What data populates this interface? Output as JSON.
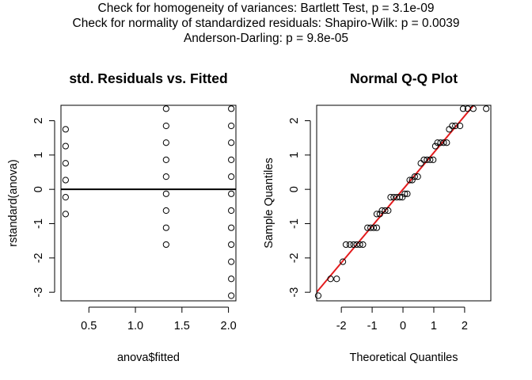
{
  "header": {
    "line1": "Check for homogeneity of variances: Bartlett Test, p =  3.1e-09",
    "line2": "Check for normality of standardized residuals: Shapiro-Wilk: p =  0.0039",
    "line3": "Anderson-Darling: p =  9.8e-05"
  },
  "chart_data": [
    {
      "type": "scatter",
      "title": "std. Residuals vs. Fitted",
      "xlabel": "anova$fitted",
      "ylabel": "rstandard(anova)",
      "xlim": [
        0.2,
        2.08
      ],
      "ylim": [
        -3.25,
        2.45
      ],
      "xticks": [
        0.5,
        1.0,
        1.5,
        2.0
      ],
      "xtick_labels": [
        "0.5",
        "1.0",
        "1.5",
        "2.0"
      ],
      "yticks": [
        -3,
        -2,
        -1,
        0,
        1,
        2
      ],
      "ytick_labels": [
        "-3",
        "-2",
        "-1",
        "0",
        "1",
        "2"
      ],
      "reference_line": {
        "y": 0,
        "color": "#000000"
      },
      "points": [
        {
          "x": 0.25,
          "y": 1.75
        },
        {
          "x": 0.25,
          "y": 1.26
        },
        {
          "x": 0.25,
          "y": 0.76
        },
        {
          "x": 0.25,
          "y": 0.27
        },
        {
          "x": 0.25,
          "y": -0.23
        },
        {
          "x": 0.25,
          "y": -0.72
        },
        {
          "x": 1.33,
          "y": 2.35
        },
        {
          "x": 1.33,
          "y": 1.85
        },
        {
          "x": 1.33,
          "y": 1.36
        },
        {
          "x": 1.33,
          "y": 0.86
        },
        {
          "x": 1.33,
          "y": 0.37
        },
        {
          "x": 1.33,
          "y": -0.13
        },
        {
          "x": 1.33,
          "y": -0.62
        },
        {
          "x": 1.33,
          "y": -1.12
        },
        {
          "x": 1.33,
          "y": -1.61
        },
        {
          "x": 2.03,
          "y": 2.35
        },
        {
          "x": 2.03,
          "y": 1.85
        },
        {
          "x": 2.03,
          "y": 1.36
        },
        {
          "x": 2.03,
          "y": 0.86
        },
        {
          "x": 2.03,
          "y": 0.37
        },
        {
          "x": 2.03,
          "y": -0.13
        },
        {
          "x": 2.03,
          "y": -0.62
        },
        {
          "x": 2.03,
          "y": -1.12
        },
        {
          "x": 2.03,
          "y": -1.61
        },
        {
          "x": 2.03,
          "y": -2.11
        },
        {
          "x": 2.03,
          "y": -2.61
        },
        {
          "x": 2.03,
          "y": -3.1
        }
      ]
    },
    {
      "type": "scatter",
      "title": "Normal Q-Q Plot",
      "xlabel": "Theoretical Quantiles",
      "ylabel": "Sample Quantiles",
      "xlim": [
        -2.8,
        2.85
      ],
      "ylim": [
        -3.25,
        2.45
      ],
      "xticks": [
        -2,
        -1,
        0,
        1,
        2
      ],
      "xtick_labels": [
        "-2",
        "-1",
        "0",
        "1",
        "2"
      ],
      "yticks": [
        -3,
        -2,
        -1,
        0,
        1,
        2
      ],
      "ytick_labels": [
        "-3",
        "-2",
        "-1",
        "0",
        "1",
        "2"
      ],
      "reference_line": {
        "slope": 1.07,
        "intercept": 0.0,
        "color": "#e31a1c"
      },
      "points": [
        {
          "x": -2.75,
          "y": -3.1
        },
        {
          "x": -2.35,
          "y": -2.61
        },
        {
          "x": -2.15,
          "y": -2.61
        },
        {
          "x": -1.95,
          "y": -2.11
        },
        {
          "x": -1.85,
          "y": -1.61
        },
        {
          "x": -1.72,
          "y": -1.61
        },
        {
          "x": -1.6,
          "y": -1.61
        },
        {
          "x": -1.5,
          "y": -1.61
        },
        {
          "x": -1.4,
          "y": -1.61
        },
        {
          "x": -1.3,
          "y": -1.61
        },
        {
          "x": -1.15,
          "y": -1.12
        },
        {
          "x": -1.05,
          "y": -1.12
        },
        {
          "x": -0.95,
          "y": -1.12
        },
        {
          "x": -0.85,
          "y": -1.12
        },
        {
          "x": -0.85,
          "y": -0.72
        },
        {
          "x": -0.75,
          "y": -0.72
        },
        {
          "x": -0.68,
          "y": -0.62
        },
        {
          "x": -0.58,
          "y": -0.62
        },
        {
          "x": -0.48,
          "y": -0.62
        },
        {
          "x": -0.4,
          "y": -0.23
        },
        {
          "x": -0.3,
          "y": -0.23
        },
        {
          "x": -0.2,
          "y": -0.23
        },
        {
          "x": -0.1,
          "y": -0.23
        },
        {
          "x": -0.02,
          "y": -0.23
        },
        {
          "x": 0.06,
          "y": -0.13
        },
        {
          "x": 0.14,
          "y": -0.13
        },
        {
          "x": 0.22,
          "y": 0.27
        },
        {
          "x": 0.3,
          "y": 0.27
        },
        {
          "x": 0.38,
          "y": 0.37
        },
        {
          "x": 0.48,
          "y": 0.37
        },
        {
          "x": 0.58,
          "y": 0.76
        },
        {
          "x": 0.68,
          "y": 0.86
        },
        {
          "x": 0.78,
          "y": 0.86
        },
        {
          "x": 0.88,
          "y": 0.86
        },
        {
          "x": 0.98,
          "y": 0.86
        },
        {
          "x": 1.05,
          "y": 1.26
        },
        {
          "x": 1.12,
          "y": 1.36
        },
        {
          "x": 1.22,
          "y": 1.36
        },
        {
          "x": 1.32,
          "y": 1.36
        },
        {
          "x": 1.42,
          "y": 1.36
        },
        {
          "x": 1.5,
          "y": 1.75
        },
        {
          "x": 1.6,
          "y": 1.85
        },
        {
          "x": 1.7,
          "y": 1.85
        },
        {
          "x": 1.85,
          "y": 1.85
        },
        {
          "x": 1.95,
          "y": 2.35
        },
        {
          "x": 2.1,
          "y": 2.35
        },
        {
          "x": 2.28,
          "y": 2.35
        },
        {
          "x": 2.7,
          "y": 2.35
        }
      ]
    }
  ]
}
